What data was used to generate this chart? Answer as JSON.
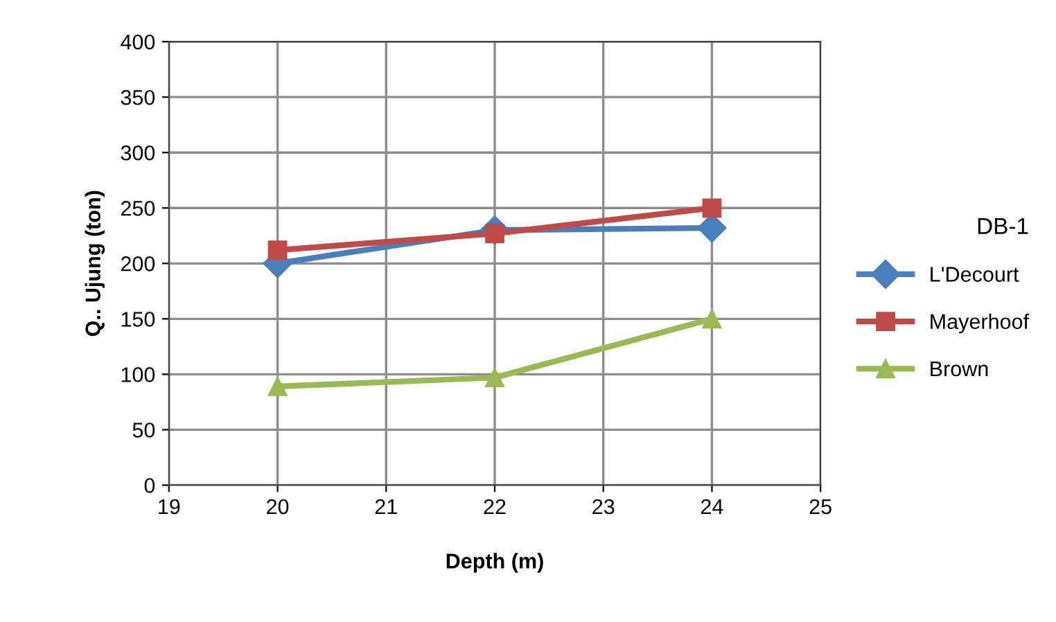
{
  "chart_data": {
    "type": "line",
    "xlabel": "Depth (m)",
    "ylabel": "Q.. Ujung (ton)",
    "legend_title": "DB-1",
    "x": [
      20,
      22,
      24
    ],
    "series": [
      {
        "name": "L'Decourt",
        "color": "#4a7ebb",
        "marker": "diamond",
        "values": [
          200,
          230,
          232
        ]
      },
      {
        "name": "Mayerhoof",
        "color": "#be4b48",
        "marker": "square",
        "values": [
          212,
          227,
          250
        ]
      },
      {
        "name": "Brown",
        "color": "#98b954",
        "marker": "triangle",
        "values": [
          89,
          97,
          150
        ]
      }
    ],
    "xlim": [
      19,
      25
    ],
    "xticks": [
      19,
      20,
      21,
      22,
      23,
      24,
      25
    ],
    "ylim": [
      0,
      400
    ],
    "yticks": [
      0,
      50,
      100,
      150,
      200,
      250,
      300,
      350,
      400
    ],
    "grid": true,
    "legend": "right"
  }
}
